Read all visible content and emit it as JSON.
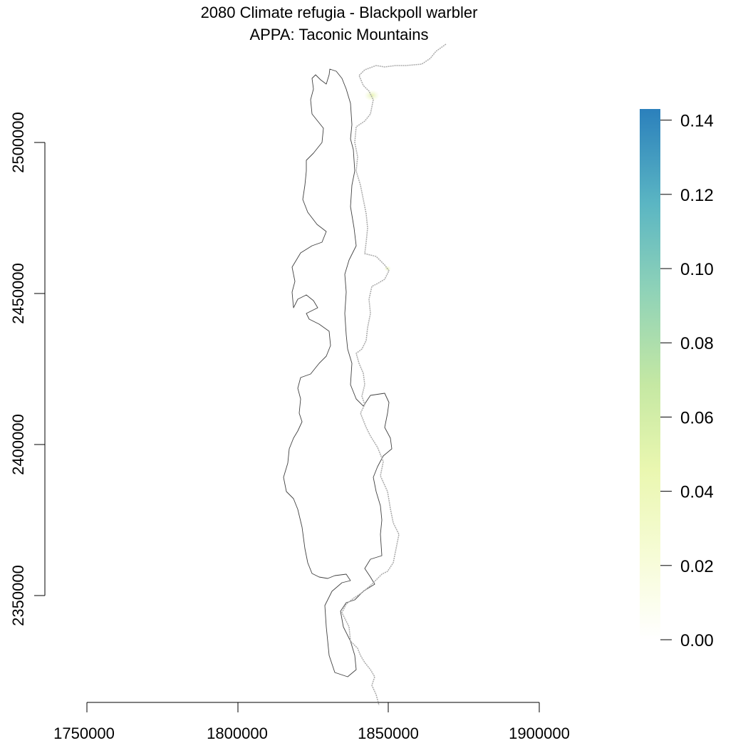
{
  "title": {
    "line1": "2080 Climate refugia - Blackpoll warbler",
    "line2": "APPA: Taconic Mountains"
  },
  "map": {
    "x_axis": {
      "ticks": [
        1750000,
        1800000,
        1850000,
        1900000
      ],
      "labels": [
        "1750000",
        "1800000",
        "1850000",
        "1900000"
      ]
    },
    "y_axis": {
      "ticks": [
        2350000,
        2400000,
        2450000,
        2500000
      ],
      "labels": [
        "2350000",
        "2400000",
        "2450000",
        "2500000"
      ]
    },
    "xlim": [
      1750000,
      1900000
    ],
    "ylim": [
      2350000,
      2500000
    ],
    "region_outline_color": "#404040",
    "trail_color": "#aaaaaa",
    "hotspot_color": "#e8f4b0"
  },
  "legend": {
    "labels": [
      "0.14",
      "0.12",
      "0.10",
      "0.08",
      "0.06",
      "0.04",
      "0.02",
      "0.00"
    ],
    "values": [
      0.14,
      0.12,
      0.1,
      0.08,
      0.06,
      0.04,
      0.02,
      0.0
    ],
    "max": 0.143,
    "colors": [
      "#ffffff",
      "#f7fcd8",
      "#eaf7b0",
      "#c5e8a3",
      "#8ed2b8",
      "#5bb6c3",
      "#2b80bc"
    ]
  }
}
